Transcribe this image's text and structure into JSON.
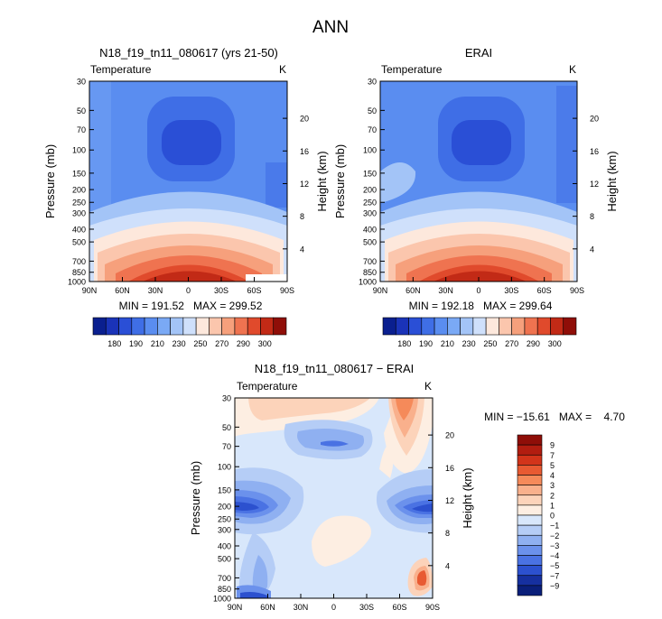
{
  "page_title": "ANN",
  "chart_data": [
    {
      "id": "model",
      "type": "contour",
      "title": "N18_f19_tn11_080617 (yrs 21-50)",
      "subtitle": "Temperature",
      "units": "K",
      "ylabel": "Pressure (mb)",
      "ylabel_right": "Height (km)",
      "x_ticks": [
        "90N",
        "60N",
        "30N",
        "0",
        "30S",
        "60S",
        "90S"
      ],
      "y_ticks": [
        "30",
        "50",
        "70",
        "100",
        "150",
        "200",
        "250",
        "300",
        "400",
        "500",
        "700",
        "850",
        "1000"
      ],
      "height_ticks": [
        "20",
        "16",
        "12",
        "8",
        "4"
      ],
      "stats": "MIN = 191.52   MAX = 299.52",
      "min": 191.52,
      "max": 299.52,
      "colorbar_ticks": [
        "180",
        "190",
        "210",
        "230",
        "250",
        "270",
        "290",
        "300"
      ]
    },
    {
      "id": "obs",
      "type": "contour",
      "title": "ERAI",
      "subtitle": "Temperature",
      "units": "K",
      "ylabel": "Pressure (mb)",
      "ylabel_right": "Height (km)",
      "x_ticks": [
        "90N",
        "60N",
        "30N",
        "0",
        "30S",
        "60S",
        "90S"
      ],
      "y_ticks": [
        "30",
        "50",
        "70",
        "100",
        "150",
        "200",
        "250",
        "300",
        "400",
        "500",
        "700",
        "850",
        "1000"
      ],
      "height_ticks": [
        "20",
        "16",
        "12",
        "8",
        "4"
      ],
      "stats": "MIN = 192.18   MAX = 299.64",
      "min": 192.18,
      "max": 299.64,
      "colorbar_ticks": [
        "180",
        "190",
        "210",
        "230",
        "250",
        "270",
        "290",
        "300"
      ]
    },
    {
      "id": "diff",
      "type": "contour",
      "title": "N18_f19_tn11_080617 − ERAI",
      "subtitle": "Temperature",
      "units": "K",
      "ylabel": "Pressure (mb)",
      "ylabel_right": "Height (km)",
      "x_ticks": [
        "90N",
        "60N",
        "30N",
        "0",
        "30S",
        "60S",
        "90S"
      ],
      "y_ticks": [
        "30",
        "50",
        "70",
        "100",
        "150",
        "200",
        "250",
        "300",
        "400",
        "500",
        "700",
        "850",
        "1000"
      ],
      "height_ticks": [
        "20",
        "16",
        "12",
        "8",
        "4"
      ],
      "stats": "MIN = −15.61   MAX =    4.70",
      "min": -15.61,
      "max": 4.7,
      "colorbar_ticks": [
        "9",
        "7",
        "5",
        "4",
        "3",
        "2",
        "1",
        "0",
        "−1",
        "−2",
        "−3",
        "−4",
        "−5",
        "−7",
        "−9"
      ]
    }
  ],
  "colors": {
    "temp_scale": [
      "#0a1f8f",
      "#1a33b8",
      "#2a4fd6",
      "#3f6ee6",
      "#5a8df0",
      "#7aa9f5",
      "#a3c4f7",
      "#cfe0fb",
      "#fde8dc",
      "#fbc6ad",
      "#f6a07c",
      "#ef7350",
      "#e04a2c",
      "#c22a16",
      "#8f0e08"
    ],
    "diff_scale": [
      "#8f0e08",
      "#b21d10",
      "#d2341a",
      "#e85a32",
      "#f58a5a",
      "#f9b08c",
      "#fcd3ba",
      "#fdeee2",
      "#d8e7fb",
      "#b5cdf6",
      "#8fb0f1",
      "#6b91ec",
      "#4a72e3",
      "#2c51cf",
      "#16309f",
      "#0a1f7a"
    ]
  }
}
